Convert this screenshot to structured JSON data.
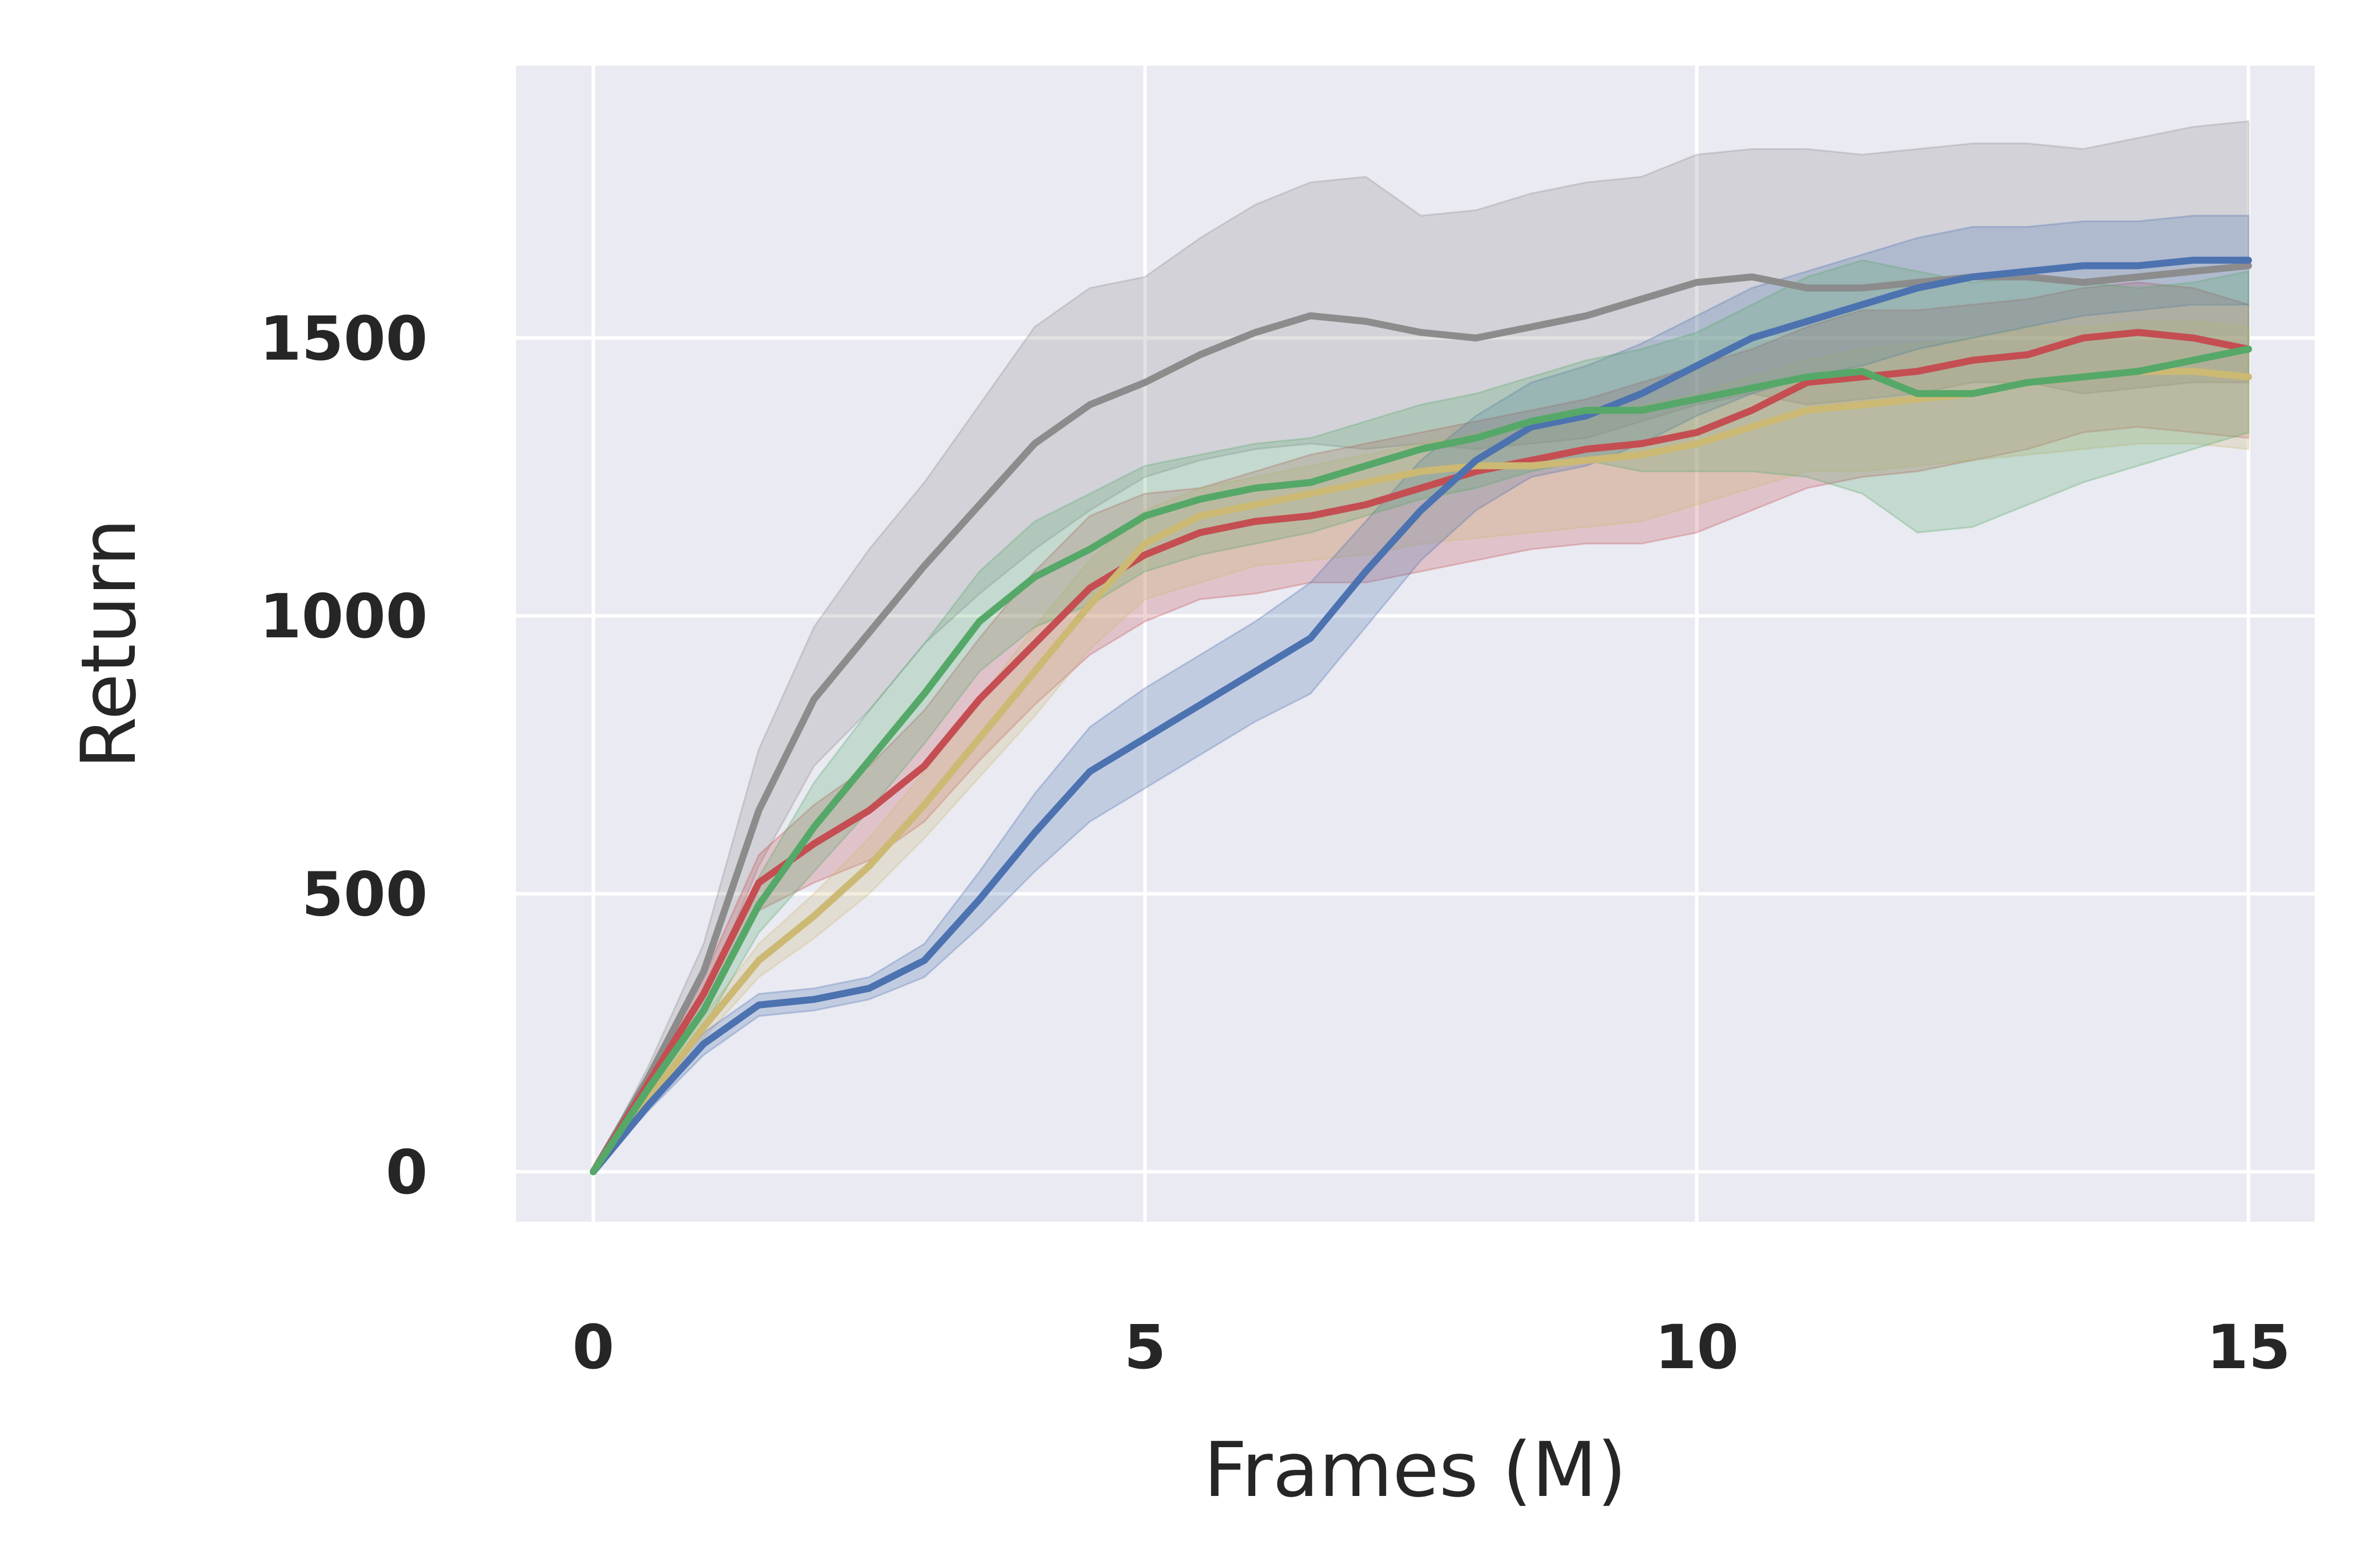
{
  "chart_data": {
    "type": "line",
    "title": "",
    "xlabel": "Frames (M)",
    "ylabel": "Return",
    "xlim": [
      -0.7,
      15.6
    ],
    "ylim": [
      -90,
      1990
    ],
    "xticks": [
      0,
      5,
      10,
      15
    ],
    "yticks": [
      0,
      500,
      1000,
      1500
    ],
    "grid": true,
    "legend": "none",
    "colors": {
      "background": "#eaeaf2",
      "grid": "#ffffff",
      "text": "#262626"
    },
    "series": [
      {
        "color": "#8c8c8c",
        "x": [
          0,
          0.5,
          1,
          1.5,
          2,
          2.5,
          3,
          3.5,
          4,
          4.5,
          5,
          5.5,
          6,
          6.5,
          7,
          7.5,
          8,
          8.5,
          9,
          9.5,
          10,
          10.5,
          11,
          11.5,
          12,
          12.5,
          13,
          13.5,
          14,
          14.5,
          15
        ],
        "y": [
          0,
          170,
          360,
          650,
          850,
          970,
          1090,
          1200,
          1310,
          1380,
          1420,
          1470,
          1510,
          1540,
          1530,
          1510,
          1500,
          1520,
          1540,
          1570,
          1600,
          1610,
          1590,
          1590,
          1600,
          1610,
          1610,
          1600,
          1610,
          1620,
          1630
        ],
        "upper": [
          0,
          190,
          410,
          760,
          980,
          1120,
          1240,
          1380,
          1520,
          1590,
          1610,
          1680,
          1740,
          1780,
          1790,
          1720,
          1730,
          1760,
          1780,
          1790,
          1830,
          1840,
          1840,
          1830,
          1840,
          1850,
          1850,
          1840,
          1860,
          1880,
          1890
        ],
        "lower": [
          0,
          150,
          310,
          550,
          730,
          830,
          950,
          1040,
          1120,
          1190,
          1250,
          1280,
          1300,
          1310,
          1300,
          1310,
          1300,
          1310,
          1320,
          1350,
          1380,
          1400,
          1380,
          1390,
          1400,
          1420,
          1420,
          1400,
          1410,
          1420,
          1420
        ]
      },
      {
        "color": "#c44e52",
        "x": [
          0,
          0.5,
          1,
          1.5,
          2,
          2.5,
          3,
          3.5,
          4,
          4.5,
          5,
          5.5,
          6,
          6.5,
          7,
          7.5,
          8,
          8.5,
          9,
          9.5,
          10,
          10.5,
          11,
          11.5,
          12,
          12.5,
          13,
          13.5,
          14,
          14.5,
          15
        ],
        "y": [
          0,
          160,
          320,
          520,
          590,
          650,
          730,
          850,
          950,
          1050,
          1110,
          1150,
          1170,
          1180,
          1200,
          1230,
          1260,
          1280,
          1300,
          1310,
          1330,
          1370,
          1420,
          1430,
          1440,
          1460,
          1470,
          1500,
          1510,
          1500,
          1480
        ],
        "upper": [
          0,
          170,
          350,
          570,
          660,
          730,
          830,
          960,
          1080,
          1180,
          1220,
          1230,
          1260,
          1290,
          1310,
          1330,
          1350,
          1370,
          1390,
          1420,
          1450,
          1480,
          1520,
          1550,
          1550,
          1560,
          1570,
          1590,
          1600,
          1590,
          1560
        ],
        "lower": [
          0,
          150,
          290,
          470,
          520,
          560,
          630,
          740,
          840,
          930,
          990,
          1030,
          1040,
          1060,
          1060,
          1080,
          1100,
          1120,
          1130,
          1130,
          1150,
          1190,
          1230,
          1250,
          1260,
          1280,
          1300,
          1330,
          1340,
          1330,
          1320
        ]
      },
      {
        "color": "#ccb974",
        "x": [
          0,
          0.5,
          1,
          1.5,
          2,
          2.5,
          3,
          3.5,
          4,
          4.5,
          5,
          5.5,
          6,
          6.5,
          7,
          7.5,
          8,
          8.5,
          9,
          9.5,
          10,
          10.5,
          11,
          11.5,
          12,
          12.5,
          13,
          13.5,
          14,
          14.5,
          15
        ],
        "y": [
          0,
          130,
          260,
          380,
          460,
          550,
          660,
          780,
          900,
          1020,
          1130,
          1180,
          1200,
          1220,
          1240,
          1260,
          1270,
          1270,
          1280,
          1290,
          1310,
          1340,
          1370,
          1380,
          1390,
          1400,
          1420,
          1430,
          1440,
          1440,
          1430
        ],
        "upper": [
          0,
          140,
          280,
          410,
          500,
          600,
          720,
          850,
          980,
          1100,
          1190,
          1230,
          1250,
          1270,
          1290,
          1310,
          1330,
          1340,
          1360,
          1380,
          1400,
          1430,
          1460,
          1480,
          1490,
          1500,
          1520,
          1520,
          1530,
          1530,
          1520
        ],
        "lower": [
          0,
          120,
          240,
          350,
          420,
          500,
          600,
          710,
          820,
          940,
          1030,
          1060,
          1090,
          1100,
          1110,
          1130,
          1140,
          1150,
          1160,
          1170,
          1200,
          1230,
          1260,
          1260,
          1270,
          1280,
          1290,
          1300,
          1310,
          1310,
          1300
        ]
      },
      {
        "color": "#4c72b0",
        "x": [
          0,
          0.5,
          1,
          1.5,
          2,
          2.5,
          3,
          3.5,
          4,
          4.5,
          5,
          5.5,
          6,
          6.5,
          7,
          7.5,
          8,
          8.5,
          9,
          9.5,
          10,
          10.5,
          11,
          11.5,
          12,
          12.5,
          13,
          13.5,
          14,
          14.5,
          15
        ],
        "y": [
          0,
          120,
          230,
          300,
          310,
          330,
          380,
          490,
          610,
          720,
          780,
          840,
          900,
          960,
          1080,
          1190,
          1280,
          1340,
          1360,
          1400,
          1450,
          1500,
          1530,
          1560,
          1590,
          1610,
          1620,
          1630,
          1630,
          1640,
          1640
        ],
        "upper": [
          0,
          130,
          250,
          320,
          330,
          350,
          410,
          540,
          680,
          800,
          870,
          930,
          990,
          1060,
          1170,
          1280,
          1360,
          1420,
          1450,
          1490,
          1540,
          1590,
          1620,
          1650,
          1680,
          1700,
          1700,
          1710,
          1710,
          1720,
          1720
        ],
        "lower": [
          0,
          110,
          210,
          280,
          290,
          310,
          350,
          440,
          540,
          630,
          690,
          750,
          810,
          860,
          980,
          1100,
          1190,
          1250,
          1270,
          1310,
          1360,
          1400,
          1430,
          1450,
          1480,
          1500,
          1520,
          1540,
          1550,
          1560,
          1560
        ]
      },
      {
        "color": "#55a868",
        "x": [
          0,
          0.5,
          1,
          1.5,
          2,
          2.5,
          3,
          3.5,
          4,
          4.5,
          5,
          5.5,
          6,
          6.5,
          7,
          7.5,
          8,
          8.5,
          9,
          9.5,
          10,
          10.5,
          11,
          11.5,
          12,
          12.5,
          13,
          13.5,
          14,
          14.5,
          15
        ],
        "y": [
          0,
          150,
          290,
          480,
          620,
          740,
          860,
          990,
          1070,
          1120,
          1180,
          1210,
          1230,
          1240,
          1270,
          1300,
          1320,
          1350,
          1370,
          1370,
          1390,
          1410,
          1430,
          1440,
          1400,
          1400,
          1420,
          1430,
          1440,
          1460,
          1480
        ],
        "upper": [
          0,
          160,
          320,
          530,
          700,
          830,
          950,
          1080,
          1170,
          1220,
          1270,
          1290,
          1310,
          1320,
          1350,
          1380,
          1400,
          1430,
          1460,
          1480,
          1510,
          1560,
          1610,
          1640,
          1620,
          1600,
          1610,
          1600,
          1590,
          1600,
          1620
        ],
        "lower": [
          0,
          140,
          260,
          430,
          540,
          650,
          770,
          900,
          980,
          1020,
          1080,
          1110,
          1130,
          1150,
          1180,
          1210,
          1230,
          1260,
          1280,
          1260,
          1260,
          1260,
          1250,
          1220,
          1150,
          1160,
          1200,
          1240,
          1270,
          1300,
          1330
        ]
      }
    ]
  }
}
